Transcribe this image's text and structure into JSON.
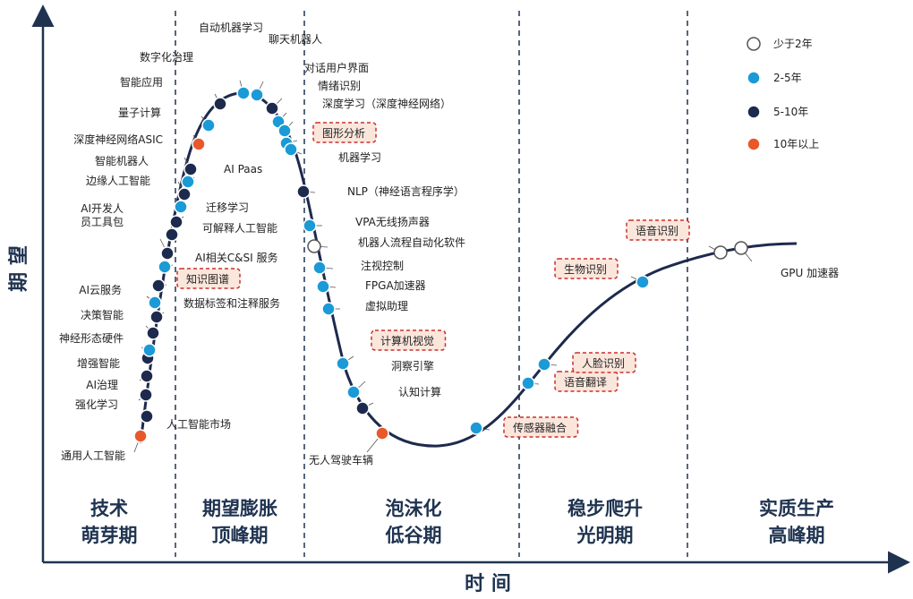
{
  "axes": {
    "y_label": "期 望",
    "x_label": "时 间"
  },
  "phases": [
    {
      "line1": "技术",
      "line2": "萌芽期"
    },
    {
      "line1": "期望膨胀",
      "line2": "顶峰期"
    },
    {
      "line1": "泡沫化",
      "line2": "低谷期"
    },
    {
      "line1": "稳步爬升",
      "line2": "光明期"
    },
    {
      "line1": "实质生产",
      "line2": "高峰期"
    }
  ],
  "legend": [
    {
      "key": "lt2",
      "label": "少于2年",
      "color": "#ffffff"
    },
    {
      "key": "2to5",
      "label": "2-5年",
      "color": "#1a9ad6"
    },
    {
      "key": "5to10",
      "label": "5-10年",
      "color": "#1d2a4d"
    },
    {
      "key": "gt10",
      "label": "10年以上",
      "color": "#e8582a"
    }
  ],
  "technologies": [
    {
      "name": "通用人工智能",
      "cat": "gt10",
      "highlight": false
    },
    {
      "name": "人工智能市场",
      "cat": "5to10",
      "highlight": false
    },
    {
      "name": "强化学习",
      "cat": "5to10",
      "highlight": false
    },
    {
      "name": "AI治理",
      "cat": "5to10",
      "highlight": false
    },
    {
      "name": "增强智能",
      "cat": "5to10",
      "highlight": false
    },
    {
      "name": "神经形态硬件",
      "cat": "2to5",
      "highlight": false
    },
    {
      "name": "决策智能",
      "cat": "5to10",
      "highlight": false
    },
    {
      "name": "数据标签和注释服务",
      "cat": "5to10",
      "highlight": false
    },
    {
      "name": "AI云服务",
      "cat": "2to5",
      "highlight": false
    },
    {
      "name": "知识图谱",
      "cat": "5to10",
      "highlight": true
    },
    {
      "name": "AI相关C&SI 服务",
      "cat": "2to5",
      "highlight": false
    },
    {
      "name": "AI开发人员工具包",
      "cat": "5to10",
      "highlight": false
    },
    {
      "name": "可解释人工智能",
      "cat": "5to10",
      "highlight": false
    },
    {
      "name": "迁移学习",
      "cat": "5to10",
      "highlight": false
    },
    {
      "name": "边缘人工智能",
      "cat": "2to5",
      "highlight": false
    },
    {
      "name": "智能机器人",
      "cat": "5to10",
      "highlight": false
    },
    {
      "name": "AI Paas",
      "cat": "2to5",
      "highlight": false
    },
    {
      "name": "深度神经网络ASIC",
      "cat": "5to10",
      "highlight": false
    },
    {
      "name": "量子计算",
      "cat": "gt10",
      "highlight": false
    },
    {
      "name": "智能应用",
      "cat": "2to5",
      "highlight": false
    },
    {
      "name": "数字化治理",
      "cat": "5to10",
      "highlight": false
    },
    {
      "name": "自动机器学习",
      "cat": "2to5",
      "highlight": false
    },
    {
      "name": "聊天机器人",
      "cat": "2to5",
      "highlight": false
    },
    {
      "name": "对话用户界面",
      "cat": "5to10",
      "highlight": false
    },
    {
      "name": "情绪识别",
      "cat": "2to5",
      "highlight": false
    },
    {
      "name": "深度学习（深度神经网络）",
      "cat": "2to5",
      "highlight": false
    },
    {
      "name": "图形分析",
      "cat": "2to5",
      "highlight": true
    },
    {
      "name": "机器学习",
      "cat": "2to5",
      "highlight": false
    },
    {
      "name": "NLP（神经语言程序学）",
      "cat": "5to10",
      "highlight": false
    },
    {
      "name": "VPA无线扬声器",
      "cat": "2to5",
      "highlight": false
    },
    {
      "name": "机器人流程自动化软件",
      "cat": "lt2",
      "highlight": false
    },
    {
      "name": "注视控制",
      "cat": "2to5",
      "highlight": false
    },
    {
      "name": "FPGA加速器",
      "cat": "2to5",
      "highlight": false
    },
    {
      "name": "虚拟助理",
      "cat": "2to5",
      "highlight": false
    },
    {
      "name": "计算机视觉",
      "cat": "2to5",
      "highlight": true
    },
    {
      "name": "洞察引擎",
      "cat": "2to5",
      "highlight": false
    },
    {
      "name": "认知计算",
      "cat": "5to10",
      "highlight": false
    },
    {
      "name": "无人驾驶车辆",
      "cat": "gt10",
      "highlight": false
    },
    {
      "name": "传感器融合",
      "cat": "2to5",
      "highlight": true
    },
    {
      "name": "语音翻译",
      "cat": "2to5",
      "highlight": true
    },
    {
      "name": "人脸识别",
      "cat": "2to5",
      "highlight": true
    },
    {
      "name": "生物识别",
      "cat": "2to5",
      "highlight": true
    },
    {
      "name": "语音识别",
      "cat": "lt2",
      "highlight": true
    },
    {
      "name": "GPU 加速器",
      "cat": "lt2",
      "highlight": false
    }
  ]
}
